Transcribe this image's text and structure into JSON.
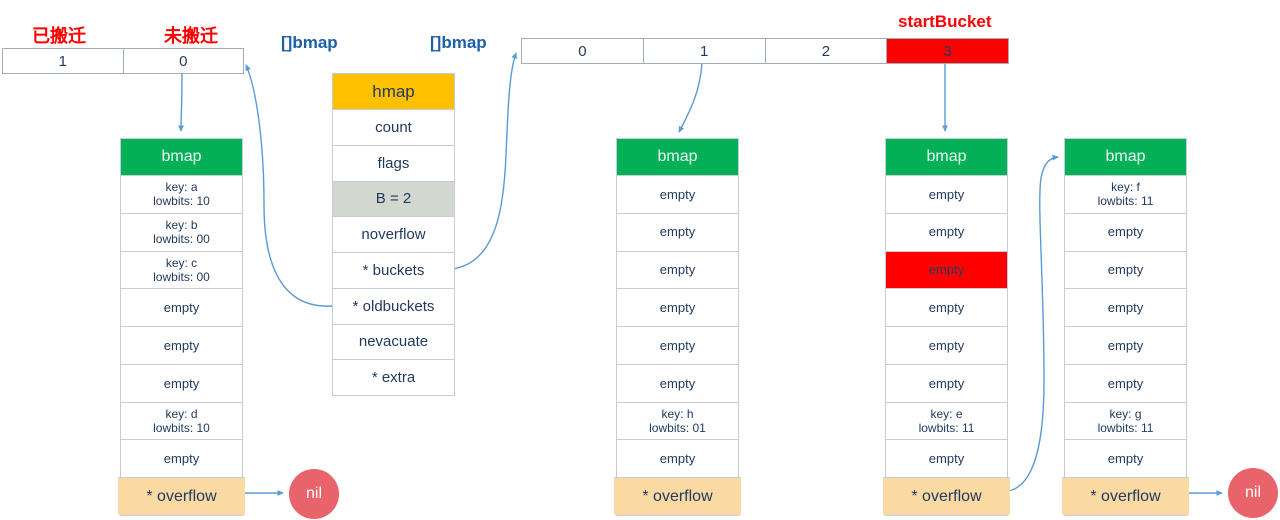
{
  "labels": {
    "migrated": "已搬迁",
    "not_migrated": "未搬迁",
    "start_bucket": "startBucket",
    "bmap_slice_old": "[]bmap",
    "bmap_slice_new": "[]bmap",
    "nil_left": "nil",
    "nil_right": "nil"
  },
  "old_state_table": {
    "cells": [
      "1",
      "0"
    ]
  },
  "hmap": {
    "title": "hmap",
    "fields": [
      "count",
      "flags",
      "B = 2",
      "noverflow",
      "* buckets",
      "* oldbuckets",
      "nevacuate",
      "* extra"
    ],
    "highlight_index": 2
  },
  "new_buckets_array": {
    "cells": [
      "0",
      "1",
      "2",
      "3"
    ],
    "highlight_index": 3
  },
  "buckets": [
    {
      "title": "bmap",
      "rows": [
        {
          "line1": "key: a",
          "line2": "lowbits: 10"
        },
        {
          "line1": "key: b",
          "line2": "lowbits: 00"
        },
        {
          "line1": "key: c",
          "line2": "lowbits: 00"
        },
        {
          "text": "empty"
        },
        {
          "text": "empty"
        },
        {
          "text": "empty"
        },
        {
          "line1": "key: d",
          "line2": "lowbits: 10"
        },
        {
          "text": "empty"
        }
      ],
      "overflow": "* overflow",
      "points_to": "nil"
    },
    {
      "title": "bmap",
      "rows": [
        {
          "text": "empty"
        },
        {
          "text": "empty"
        },
        {
          "text": "empty"
        },
        {
          "text": "empty"
        },
        {
          "text": "empty"
        },
        {
          "text": "empty"
        },
        {
          "line1": "key: h",
          "line2": "lowbits: 01"
        },
        {
          "text": "empty"
        }
      ],
      "overflow": "* overflow",
      "points_to": ""
    },
    {
      "title": "bmap",
      "rows": [
        {
          "text": "empty"
        },
        {
          "text": "empty"
        },
        {
          "text": "empty",
          "highlight": true
        },
        {
          "text": "empty"
        },
        {
          "text": "empty"
        },
        {
          "text": "empty"
        },
        {
          "line1": "key: e",
          "line2": "lowbits: 11"
        },
        {
          "text": "empty"
        }
      ],
      "overflow": "* overflow",
      "points_to": "overflow-bucket"
    },
    {
      "title": "bmap",
      "rows": [
        {
          "line1": "key: f",
          "line2": "lowbits: 11"
        },
        {
          "text": "empty"
        },
        {
          "text": "empty"
        },
        {
          "text": "empty"
        },
        {
          "text": "empty"
        },
        {
          "text": "empty"
        },
        {
          "line1": "key: g",
          "line2": "lowbits: 11"
        },
        {
          "text": "empty"
        }
      ],
      "overflow": "* overflow",
      "points_to": "nil"
    }
  ],
  "connections": [
    {
      "from": "old-state-cell-0",
      "to": "bucket-0"
    },
    {
      "from": "hmap-field-oldbuckets",
      "to": "old-state-table"
    },
    {
      "from": "hmap-field-buckets",
      "to": "new-buckets-array"
    },
    {
      "from": "new-array-cell-1",
      "to": "bucket-1"
    },
    {
      "from": "new-array-cell-3",
      "to": "bucket-2"
    },
    {
      "from": "bucket-2-overflow",
      "to": "bucket-3"
    },
    {
      "from": "bucket-0-overflow",
      "to": "nil"
    },
    {
      "from": "bucket-3-overflow",
      "to": "nil"
    }
  ],
  "colors": {
    "green": "#04b057",
    "orange": "#ffc000",
    "peach": "#fbd9a2",
    "gray": "#d2d8d0",
    "red": "#ff0000",
    "nil": "#e9636b",
    "arrow": "#5b9bd5",
    "navy": "#223a5e",
    "blue": "#1e5fa9",
    "border": "#c6ccd3",
    "border2": "#9fadbd"
  }
}
